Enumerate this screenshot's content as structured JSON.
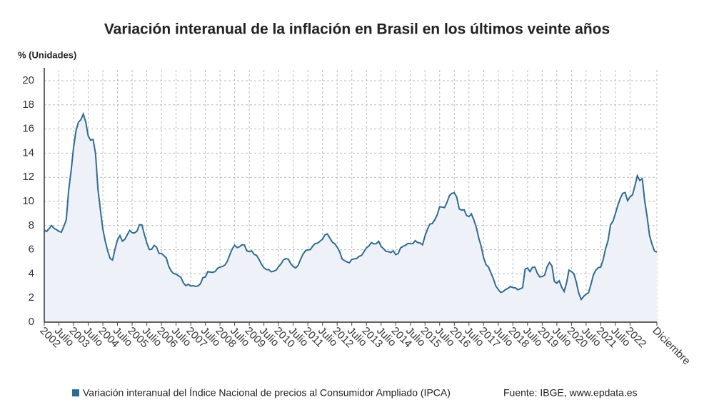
{
  "chart_data": {
    "type": "line",
    "title": "Variación interanual de la inflación en Brasil en los últimos veinte años",
    "y_label": "% (Unidades)",
    "source": "Fuente: IBGE, www.epdata.es",
    "categories": [
      "2002",
      null,
      null,
      null,
      null,
      null,
      "Julio",
      null,
      null,
      null,
      null,
      null,
      "2003",
      null,
      null,
      null,
      null,
      null,
      "Julio",
      null,
      null,
      null,
      null,
      null,
      "2004",
      null,
      null,
      null,
      null,
      null,
      "Julio",
      null,
      null,
      null,
      null,
      null,
      "2005",
      null,
      null,
      null,
      null,
      null,
      "Julio",
      null,
      null,
      null,
      null,
      null,
      "2006",
      null,
      null,
      null,
      null,
      null,
      "Julio",
      null,
      null,
      null,
      null,
      null,
      "2007",
      null,
      null,
      null,
      null,
      null,
      "Julio",
      null,
      null,
      null,
      null,
      null,
      "2008",
      null,
      null,
      null,
      null,
      null,
      "Julio",
      null,
      null,
      null,
      null,
      null,
      "2009",
      null,
      null,
      null,
      null,
      null,
      "Julio",
      null,
      null,
      null,
      null,
      null,
      "2010",
      null,
      null,
      null,
      null,
      null,
      "Julio",
      null,
      null,
      null,
      null,
      null,
      "2011",
      null,
      null,
      null,
      null,
      null,
      "Julio",
      null,
      null,
      null,
      null,
      null,
      "2012",
      null,
      null,
      null,
      null,
      null,
      "Julio",
      null,
      null,
      null,
      null,
      null,
      "2013",
      null,
      null,
      null,
      null,
      null,
      "Julio",
      null,
      null,
      null,
      null,
      null,
      "2014",
      null,
      null,
      null,
      null,
      null,
      "Julio",
      null,
      null,
      null,
      null,
      null,
      "2015",
      null,
      null,
      null,
      null,
      null,
      "Julio",
      null,
      null,
      null,
      null,
      null,
      "2016",
      null,
      null,
      null,
      null,
      null,
      "Julio",
      null,
      null,
      null,
      null,
      null,
      "2017",
      null,
      null,
      null,
      null,
      null,
      "Julio",
      null,
      null,
      null,
      null,
      null,
      "2018",
      null,
      null,
      null,
      null,
      null,
      "Julio",
      null,
      null,
      null,
      null,
      null,
      "2019",
      null,
      null,
      null,
      null,
      null,
      "Julio",
      null,
      null,
      null,
      null,
      null,
      "2020",
      null,
      null,
      null,
      null,
      null,
      "Julio",
      null,
      null,
      null,
      null,
      null,
      "2021",
      null,
      null,
      null,
      null,
      null,
      "Julio",
      null,
      null,
      null,
      null,
      null,
      "2022",
      null,
      null,
      null,
      null,
      null,
      null,
      null,
      null,
      null,
      null,
      "Diciembre"
    ],
    "series": [
      {
        "name": "Variación interanual del Índice Nacional de precios al Consumidor Ampliado (IPCA)",
        "color": "#2f6b91",
        "values": [
          7.62,
          7.51,
          7.75,
          8.0,
          7.77,
          7.66,
          7.51,
          7.46,
          7.93,
          8.45,
          10.93,
          12.53,
          14.47,
          15.85,
          16.57,
          16.77,
          17.24,
          16.57,
          15.43,
          15.07,
          15.14,
          13.98,
          11.02,
          9.3,
          7.71,
          6.69,
          5.89,
          5.26,
          5.15,
          6.06,
          6.81,
          7.18,
          6.71,
          6.86,
          7.24,
          7.6,
          7.41,
          7.39,
          7.54,
          8.07,
          8.05,
          7.27,
          6.57,
          6.02,
          6.04,
          6.36,
          6.22,
          5.69,
          5.7,
          5.51,
          5.32,
          4.63,
          4.23,
          4.03,
          3.97,
          3.84,
          3.7,
          3.26,
          3.02,
          3.14,
          2.99,
          3.02,
          2.96,
          3.0,
          3.18,
          3.69,
          3.74,
          4.18,
          4.15,
          4.12,
          4.19,
          4.46,
          4.56,
          4.61,
          4.73,
          5.04,
          5.58,
          6.06,
          6.37,
          6.17,
          6.25,
          6.41,
          6.39,
          5.9,
          5.84,
          5.9,
          5.61,
          5.53,
          5.2,
          4.8,
          4.5,
          4.36,
          4.34,
          4.17,
          4.22,
          4.31,
          4.59,
          4.83,
          5.17,
          5.26,
          5.22,
          4.84,
          4.6,
          4.49,
          4.7,
          5.2,
          5.63,
          5.91,
          5.99,
          6.01,
          6.3,
          6.51,
          6.55,
          6.71,
          6.87,
          7.23,
          7.31,
          6.97,
          6.64,
          6.5,
          6.22,
          5.85,
          5.24,
          5.1,
          4.99,
          4.92,
          5.2,
          5.24,
          5.28,
          5.45,
          5.53,
          5.84,
          6.15,
          6.31,
          6.59,
          6.49,
          6.5,
          6.7,
          6.27,
          6.09,
          5.86,
          5.84,
          5.77,
          5.91,
          5.59,
          5.68,
          6.15,
          6.28,
          6.37,
          6.52,
          6.5,
          6.51,
          6.75,
          6.59,
          6.56,
          6.41,
          7.14,
          7.7,
          8.13,
          8.17,
          8.47,
          8.89,
          9.56,
          9.53,
          9.49,
          9.93,
          10.48,
          10.67,
          10.71,
          10.36,
          9.39,
          9.28,
          9.32,
          8.84,
          8.74,
          8.97,
          8.48,
          7.87,
          6.99,
          6.29,
          5.35,
          4.76,
          4.57,
          4.08,
          3.6,
          3.0,
          2.71,
          2.46,
          2.54,
          2.7,
          2.8,
          2.95,
          2.86,
          2.84,
          2.68,
          2.76,
          2.86,
          4.39,
          4.48,
          4.19,
          4.53,
          4.56,
          4.05,
          3.75,
          3.78,
          3.89,
          4.58,
          4.94,
          4.66,
          3.37,
          3.22,
          3.43,
          2.89,
          2.54,
          3.27,
          4.31,
          4.19,
          4.01,
          3.3,
          2.4,
          1.88,
          2.13,
          2.31,
          2.44,
          3.14,
          3.92,
          4.31,
          4.52,
          4.56,
          5.2,
          6.1,
          6.76,
          8.06,
          8.35,
          8.99,
          9.68,
          10.25,
          10.67,
          10.74,
          10.06,
          10.38,
          10.54,
          11.3,
          12.13,
          11.73,
          11.89,
          10.07,
          8.73,
          7.17,
          6.47,
          5.9,
          5.79
        ]
      }
    ],
    "ylim": [
      0,
      20
    ],
    "yticks": [
      0,
      2,
      4,
      6,
      8,
      10,
      12,
      14,
      16,
      18,
      20
    ],
    "grid": true,
    "area_fill": "#eef2f8"
  }
}
